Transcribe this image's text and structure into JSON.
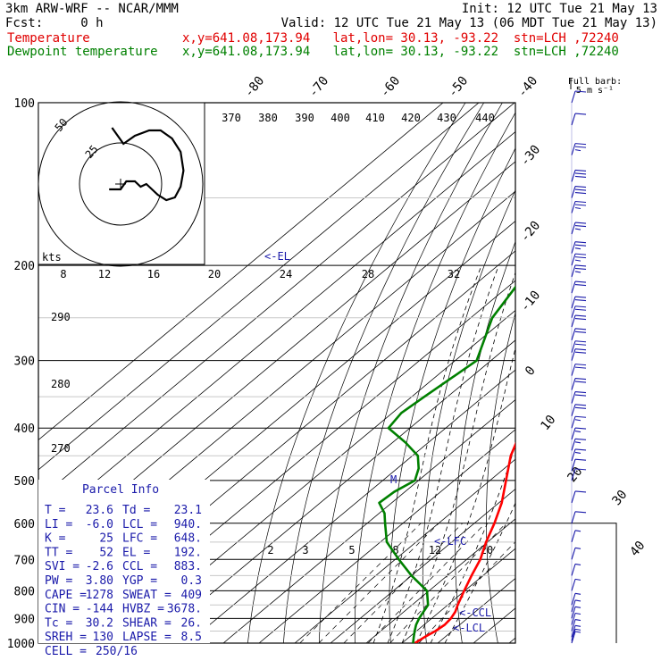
{
  "header": {
    "model": "3km ARW-WRF -- NCAR/MMM",
    "init": "Init: 12 UTC Tue 21 May 13",
    "fcst": "Fcst:     0 h",
    "valid": "Valid: 12 UTC Tue 21 May 13 (06 MDT Tue 21 May 13)",
    "temp_label": "Temperature",
    "temp_loc": "x,y=641.08,173.94   lat,lon= 30.13, -93.22  stn=LCH ,72240",
    "dew_label": "Dewpoint temperature",
    "dew_loc": "x,y=641.08,173.94   lat,lon= 30.13, -93.22  stn=LCH ,72240"
  },
  "colors": {
    "temperature": "#ff0000",
    "dewpoint": "#008000",
    "barbs": "#1a1aaa",
    "background": "#ffffff"
  },
  "barb_key": {
    "line1": "Full barb:",
    "line2": "5 m s⁻¹"
  },
  "hodograph": {
    "units": "kts",
    "ring_labels": [
      "25",
      "50"
    ]
  },
  "markers": {
    "el": "<-EL",
    "lfc": "<-LFC",
    "ccl": "<-CCL",
    "lcl": "<-LCL",
    "m": "M"
  },
  "parcel_info": {
    "title": "Parcel Info",
    "rows": [
      [
        "T  =",
        "23.6",
        "Td =",
        "23.1"
      ],
      [
        "LI =",
        "-6.0",
        "LCL =",
        "940."
      ],
      [
        "K  =",
        "25",
        "LFC =",
        "648."
      ],
      [
        "TT =",
        "52",
        "EL =",
        "192."
      ],
      [
        "SVI =",
        "-2.6",
        "CCL =",
        "883."
      ],
      [
        "PW =",
        "3.80",
        "YGP =",
        "0.3"
      ],
      [
        "CAPE =",
        "1278",
        "SWEAT =",
        "409"
      ],
      [
        "CIN =",
        "-144",
        "HVBZ =",
        "3678."
      ],
      [
        "Tc =",
        "30.2",
        "SHEAR =",
        "26."
      ],
      [
        "SREH =",
        "130",
        "LAPSE =",
        "8.5"
      ],
      [
        "CELL =",
        "250/16",
        "",
        ""
      ]
    ]
  },
  "chart_data": {
    "type": "line",
    "title": "",
    "xlabel": "",
    "ylabel": "",
    "pressure_levels": [
      100,
      200,
      300,
      400,
      500,
      600,
      700,
      800,
      900,
      1000
    ],
    "temp_tick_labels": [
      "-80",
      "-70",
      "-60",
      "-50",
      "-40",
      "-30",
      "-20",
      "-10",
      "0",
      "10",
      "20",
      "30",
      "40"
    ],
    "theta_labels": [
      "370",
      "380",
      "390",
      "400",
      "410",
      "420",
      "430",
      "440"
    ],
    "upper_labels": [
      "8",
      "12",
      "16",
      "20",
      "24",
      "28",
      "32"
    ],
    "mixing_ratio_labels": [
      "2",
      "3",
      "5",
      "8",
      "12",
      "20"
    ],
    "dry_adiabat_labels": [
      "290",
      "280",
      "270"
    ],
    "series": [
      {
        "name": "Temperature",
        "pressure": [
          1000,
          975,
          950,
          925,
          900,
          875,
          850,
          800,
          750,
          700,
          650,
          600,
          550,
          500,
          450,
          400,
          350,
          300,
          250,
          200,
          175,
          150,
          130,
          115,
          100
        ],
        "values": [
          23.6,
          24.3,
          25.3,
          25.8,
          25.4,
          24.4,
          22.8,
          19.8,
          16.8,
          13.8,
          9.6,
          5.6,
          0.8,
          -5.5,
          -12.5,
          -18.5,
          -24.0,
          -31.5,
          -40.5,
          -50.5,
          -56.0,
          -62.5,
          -64.5,
          -64.0,
          -66.5
        ]
      },
      {
        "name": "Dewpoint temperature",
        "pressure": [
          1000,
          975,
          950,
          925,
          900,
          875,
          850,
          800,
          750,
          700,
          650,
          600,
          575,
          550,
          525,
          500,
          475,
          450,
          425,
          400,
          375,
          350,
          300,
          250,
          200,
          175,
          150,
          130,
          115,
          100
        ],
        "values": [
          23.1,
          21.3,
          19.5,
          17.8,
          16.5,
          15.5,
          14.5,
          9.4,
          0.0,
          -9.0,
          -18.2,
          -25.0,
          -28.5,
          -33.5,
          -33.0,
          -31.0,
          -34.0,
          -38.5,
          -46.5,
          -56.0,
          -57.5,
          -56.5,
          -54.0,
          -64.0,
          -70.5,
          -74.5,
          -79.0,
          -82.0,
          -84.0,
          -86.0
        ]
      }
    ],
    "hodograph_uv": [
      [
        -4,
        2
      ],
      [
        0,
        2
      ],
      [
        2,
        -1
      ],
      [
        5,
        -1
      ],
      [
        7,
        1
      ],
      [
        9,
        0
      ],
      [
        11,
        2
      ],
      [
        13,
        4
      ],
      [
        16,
        6
      ],
      [
        19,
        5
      ],
      [
        21,
        1
      ],
      [
        22,
        -5
      ],
      [
        21,
        -12
      ],
      [
        18,
        -17
      ],
      [
        14,
        -20
      ],
      [
        10,
        -20
      ],
      [
        5,
        -18
      ],
      [
        1,
        -15
      ],
      [
        -1,
        -18
      ],
      [
        -3,
        -21
      ]
    ],
    "wind_profile": {
      "pressure": [
        100,
        110,
        125,
        140,
        150,
        160,
        175,
        190,
        200,
        210,
        225,
        240,
        250,
        260,
        275,
        290,
        300,
        320,
        340,
        360,
        380,
        400,
        420,
        440,
        460,
        480,
        500,
        550,
        600,
        650,
        700,
        750,
        800,
        850,
        875,
        900,
        925,
        950,
        975,
        990,
        1000
      ],
      "speed_ms": [
        12,
        12,
        25,
        30,
        28,
        26,
        24,
        24,
        24,
        24,
        22,
        20,
        20,
        20,
        20,
        20,
        20,
        18,
        18,
        18,
        18,
        16,
        16,
        14,
        14,
        12,
        12,
        10,
        8,
        6,
        6,
        6,
        6,
        4,
        4,
        4,
        4,
        4,
        4,
        4,
        4
      ]
    }
  }
}
